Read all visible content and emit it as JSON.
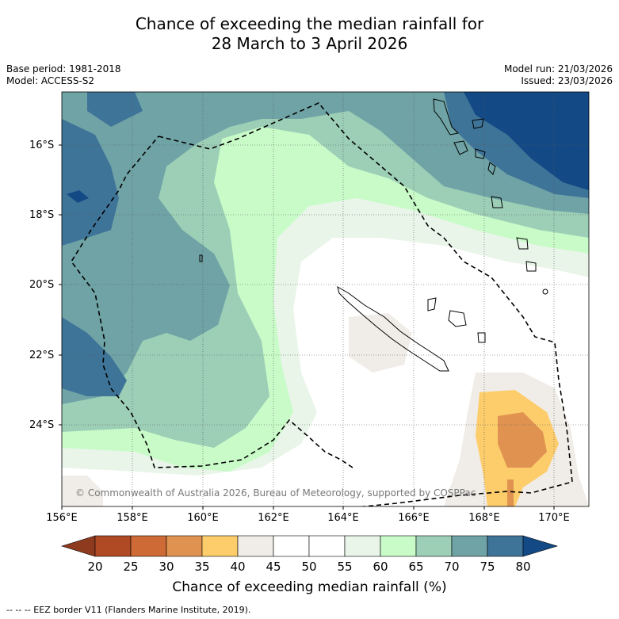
{
  "title": {
    "line1": "Chance of exceeding the median rainfall for",
    "line2": "28 March to 3 April 2026"
  },
  "meta": {
    "base_period": "Base period: 1981-2018",
    "model": "Model: ACCESS-S2",
    "model_run": "Model run: 21/03/2026",
    "issued": "Issued: 23/03/2026"
  },
  "axes": {
    "latitudes": [
      "16°S",
      "18°S",
      "20°S",
      "22°S",
      "24°S"
    ],
    "longitudes": [
      "156°E",
      "158°E",
      "160°E",
      "162°E",
      "164°E",
      "166°E",
      "168°E",
      "170°E"
    ]
  },
  "copyright": "© Commonwealth of Australia 2026, Bureau of Meteorology, supported by COSPPac",
  "colorbar": {
    "ticks": [
      "20",
      "25",
      "30",
      "35",
      "40",
      "45",
      "50",
      "55",
      "60",
      "65",
      "70",
      "75",
      "80"
    ],
    "colors": [
      "#b04a24",
      "#cd6a35",
      "#e09350",
      "#fdcd6c",
      "#f0ede8",
      "#ffffff",
      "#ffffff",
      "#e8f5e8",
      "#c9fbc9",
      "#9ccfb6",
      "#6fa3a6",
      "#3f7499"
    ],
    "under_color": "#8e3a1f",
    "over_color": "#134a85",
    "label": "Chance of exceeding median rainfall (%)"
  },
  "footnote": "--  --  -- EEZ border V11 (Flanders Marine Institute, 2019)."
}
